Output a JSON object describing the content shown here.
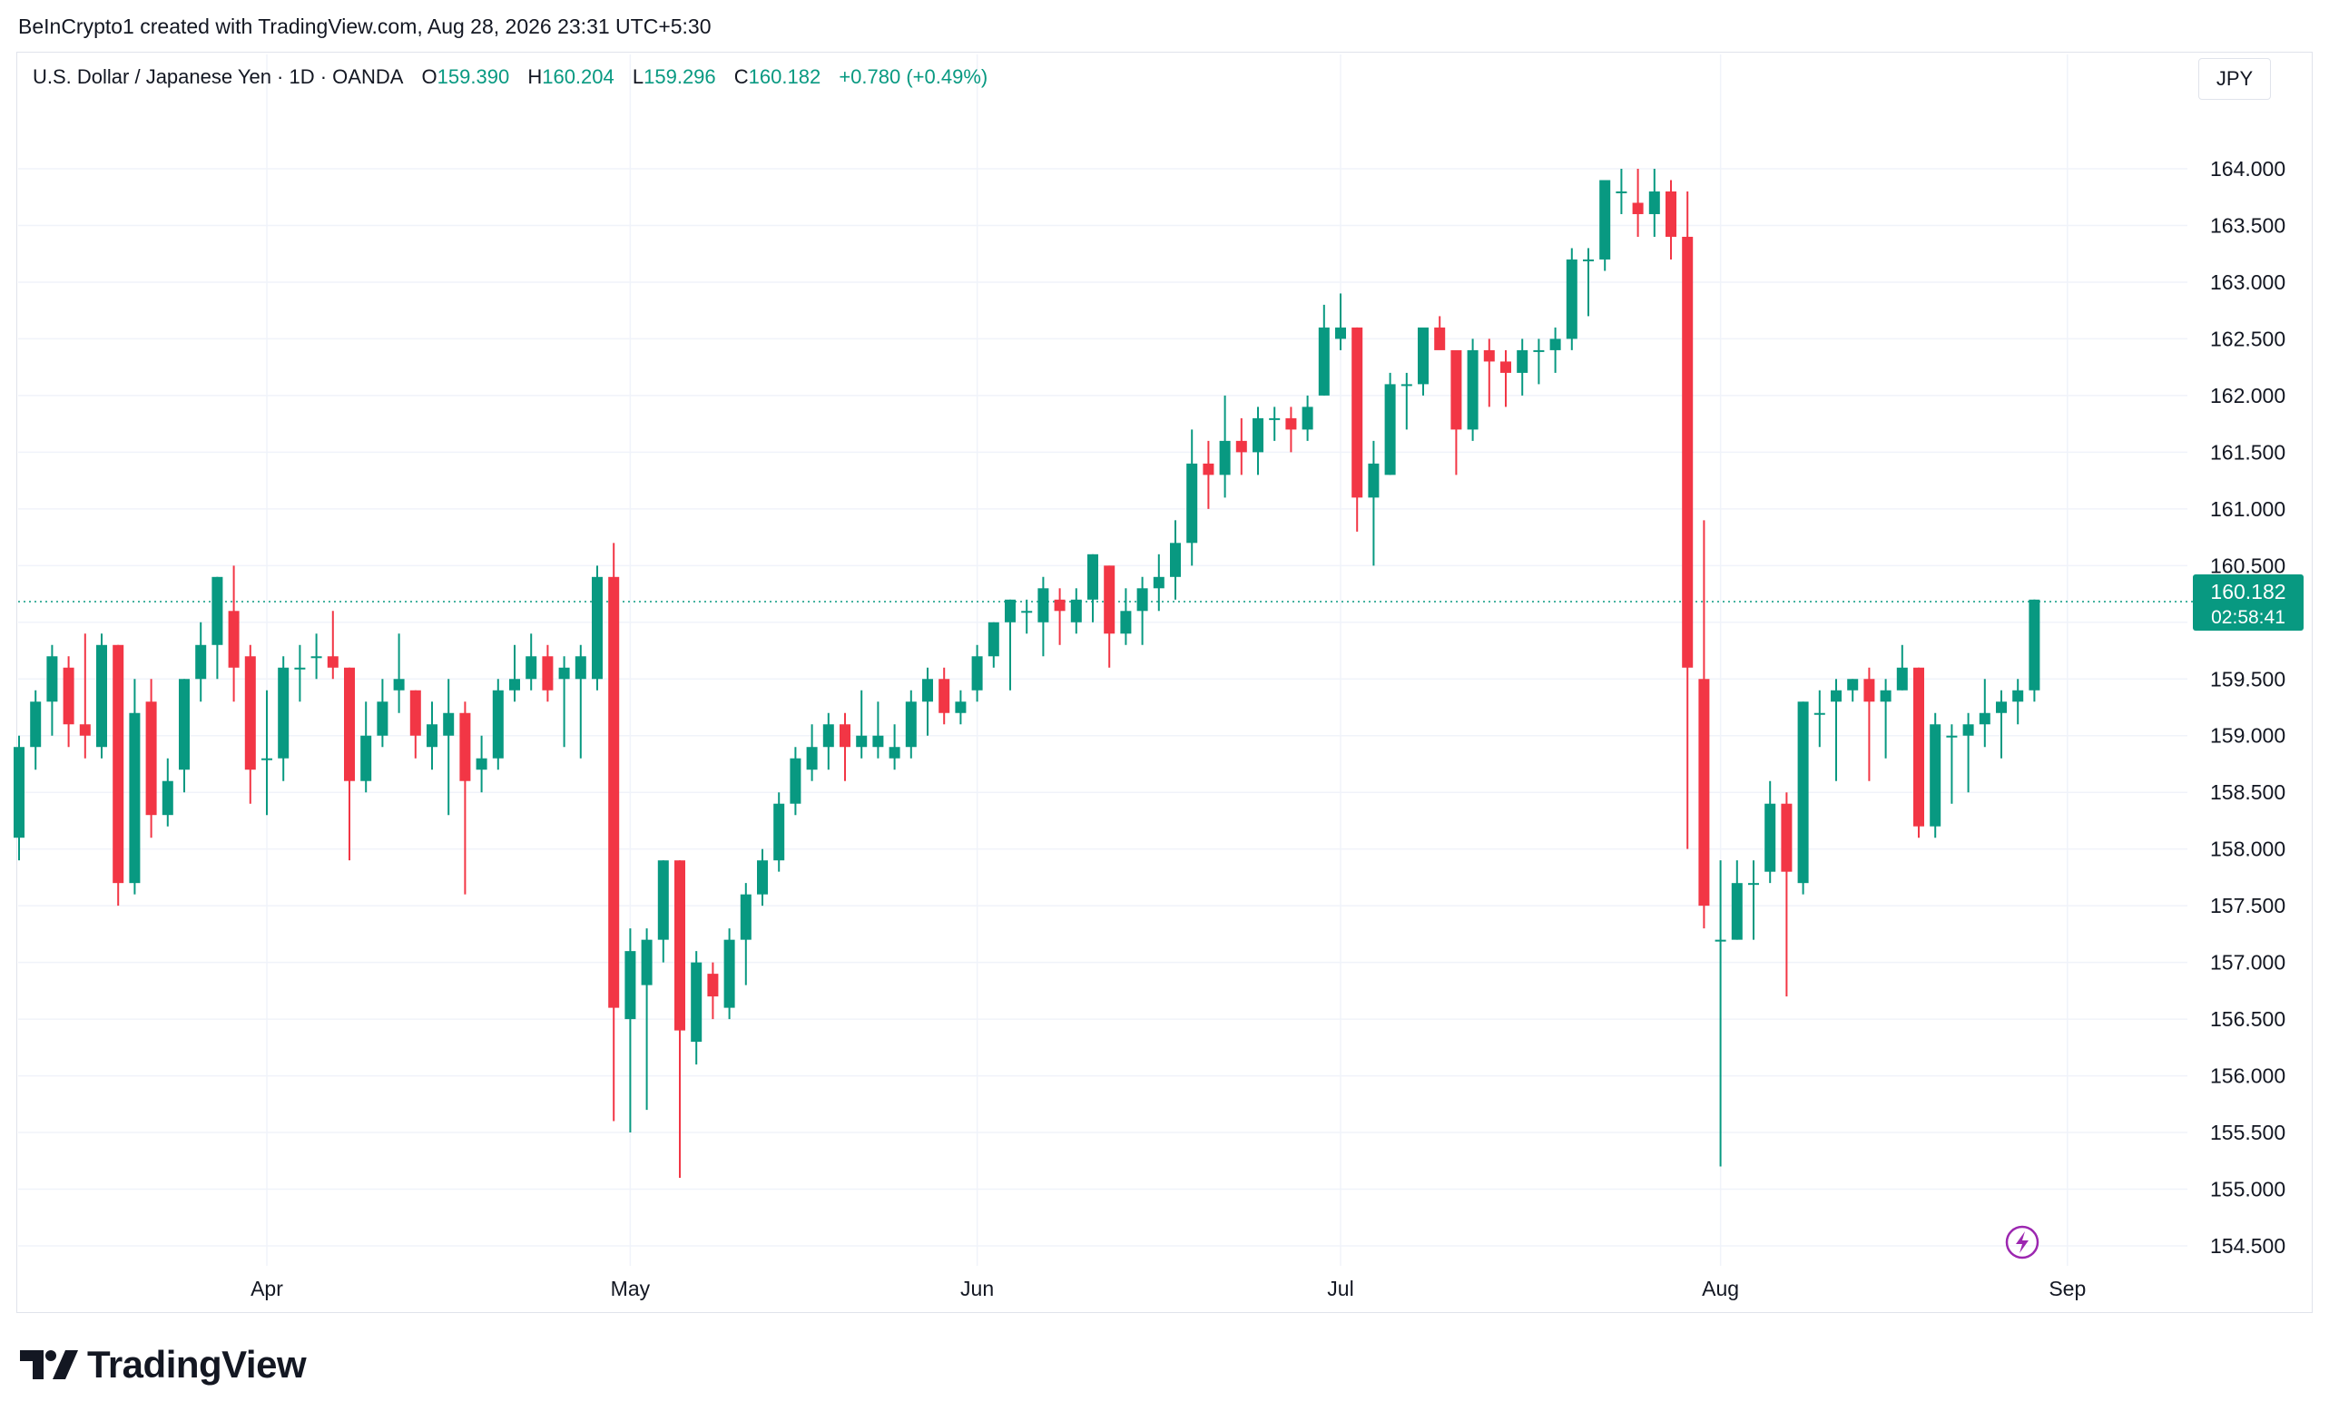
{
  "caption": "BeInCrypto1 created with TradingView.com, Aug 28, 2026 23:31 UTC+5:30",
  "legend": {
    "symbol": "U.S. Dollar / Japanese Yen · 1D · OANDA",
    "open_label": "O",
    "open": "159.390",
    "high_label": "H",
    "high": "160.204",
    "low_label": "L",
    "low": "159.296",
    "close_label": "C",
    "close": "160.182",
    "change": "+0.780 (+0.49%)"
  },
  "currency_button": "JPY",
  "brand": "TradingView",
  "colors": {
    "up": "#089981",
    "down": "#f23645",
    "grid": "#f0f3fa",
    "price_line": "#089981",
    "watermark": "#9c27b0"
  },
  "chart_data": {
    "type": "candlestick",
    "ylim": [
      154.3,
      164.8
    ],
    "y_ticks": [
      "164.000",
      "163.500",
      "163.000",
      "162.500",
      "162.000",
      "161.500",
      "161.000",
      "160.500",
      "160.000",
      "159.500",
      "159.000",
      "158.500",
      "158.000",
      "157.500",
      "157.000",
      "156.500",
      "156.000",
      "155.500",
      "155.000",
      "154.500"
    ],
    "x_ticks": [
      {
        "label": "Apr",
        "index": 15
      },
      {
        "label": "May",
        "index": 37
      },
      {
        "label": "Jun",
        "index": 58
      },
      {
        "label": "Jul",
        "index": 80
      },
      {
        "label": "Aug",
        "index": 103
      },
      {
        "label": "Sep",
        "index": 124
      }
    ],
    "last_price": "160.182",
    "countdown": "02:58:41",
    "candles": [
      [
        158.1,
        159.0,
        157.9,
        158.9
      ],
      [
        158.9,
        159.4,
        158.7,
        159.3
      ],
      [
        159.3,
        159.8,
        159.0,
        159.7
      ],
      [
        159.6,
        159.7,
        158.9,
        159.1
      ],
      [
        159.1,
        159.9,
        158.8,
        159.0
      ],
      [
        158.9,
        159.9,
        158.8,
        159.8
      ],
      [
        159.8,
        159.8,
        157.5,
        157.7
      ],
      [
        157.7,
        159.5,
        157.6,
        159.2
      ],
      [
        159.3,
        159.5,
        158.1,
        158.3
      ],
      [
        158.3,
        158.8,
        158.2,
        158.6
      ],
      [
        158.7,
        159.5,
        158.5,
        159.5
      ],
      [
        159.5,
        160.0,
        159.3,
        159.8
      ],
      [
        159.8,
        160.4,
        159.5,
        160.4
      ],
      [
        160.1,
        160.5,
        159.3,
        159.6
      ],
      [
        159.7,
        159.8,
        158.4,
        158.7
      ],
      [
        158.8,
        159.4,
        158.3,
        158.8
      ],
      [
        158.8,
        159.7,
        158.6,
        159.6
      ],
      [
        159.6,
        159.8,
        159.3,
        159.6
      ],
      [
        159.7,
        159.9,
        159.5,
        159.7
      ],
      [
        159.7,
        160.1,
        159.5,
        159.6
      ],
      [
        159.6,
        159.6,
        157.9,
        158.6
      ],
      [
        158.6,
        159.3,
        158.5,
        159.0
      ],
      [
        159.0,
        159.5,
        158.9,
        159.3
      ],
      [
        159.4,
        159.9,
        159.2,
        159.5
      ],
      [
        159.4,
        159.4,
        158.8,
        159.0
      ],
      [
        158.9,
        159.3,
        158.7,
        159.1
      ],
      [
        159.0,
        159.5,
        158.3,
        159.2
      ],
      [
        159.2,
        159.3,
        157.6,
        158.6
      ],
      [
        158.7,
        159.0,
        158.5,
        158.8
      ],
      [
        158.8,
        159.5,
        158.7,
        159.4
      ],
      [
        159.4,
        159.8,
        159.3,
        159.5
      ],
      [
        159.5,
        159.9,
        159.4,
        159.7
      ],
      [
        159.7,
        159.8,
        159.3,
        159.4
      ],
      [
        159.5,
        159.7,
        158.9,
        159.6
      ],
      [
        159.5,
        159.8,
        158.8,
        159.7
      ],
      [
        159.5,
        160.5,
        159.4,
        160.4
      ],
      [
        160.4,
        160.7,
        155.6,
        156.6
      ],
      [
        156.5,
        157.3,
        155.5,
        157.1
      ],
      [
        156.8,
        157.3,
        155.7,
        157.2
      ],
      [
        157.2,
        157.9,
        157.0,
        157.9
      ],
      [
        157.9,
        157.9,
        155.1,
        156.4
      ],
      [
        156.3,
        157.1,
        156.1,
        157.0
      ],
      [
        156.9,
        157.0,
        156.5,
        156.7
      ],
      [
        156.6,
        157.3,
        156.5,
        157.2
      ],
      [
        157.2,
        157.7,
        156.8,
        157.6
      ],
      [
        157.6,
        158.0,
        157.5,
        157.9
      ],
      [
        157.9,
        158.5,
        157.8,
        158.4
      ],
      [
        158.4,
        158.9,
        158.3,
        158.8
      ],
      [
        158.7,
        159.1,
        158.6,
        158.9
      ],
      [
        158.9,
        159.2,
        158.7,
        159.1
      ],
      [
        159.1,
        159.2,
        158.6,
        158.9
      ],
      [
        158.9,
        159.4,
        158.8,
        159.0
      ],
      [
        158.9,
        159.3,
        158.8,
        159.0
      ],
      [
        158.8,
        159.1,
        158.7,
        158.9
      ],
      [
        158.9,
        159.4,
        158.8,
        159.3
      ],
      [
        159.3,
        159.6,
        159.0,
        159.5
      ],
      [
        159.5,
        159.6,
        159.1,
        159.2
      ],
      [
        159.2,
        159.4,
        159.1,
        159.3
      ],
      [
        159.4,
        159.8,
        159.3,
        159.7
      ],
      [
        159.7,
        160.0,
        159.6,
        160.0
      ],
      [
        160.0,
        160.2,
        159.4,
        160.2
      ],
      [
        160.1,
        160.2,
        159.9,
        160.1
      ],
      [
        160.0,
        160.4,
        159.7,
        160.3
      ],
      [
        160.2,
        160.3,
        159.8,
        160.1
      ],
      [
        160.0,
        160.3,
        159.9,
        160.2
      ],
      [
        160.2,
        160.6,
        160.0,
        160.6
      ],
      [
        160.5,
        160.5,
        159.6,
        159.9
      ],
      [
        159.9,
        160.3,
        159.8,
        160.1
      ],
      [
        160.1,
        160.4,
        159.8,
        160.3
      ],
      [
        160.3,
        160.6,
        160.1,
        160.4
      ],
      [
        160.4,
        160.9,
        160.2,
        160.7
      ],
      [
        160.7,
        161.7,
        160.5,
        161.4
      ],
      [
        161.4,
        161.6,
        161.0,
        161.3
      ],
      [
        161.3,
        162.0,
        161.1,
        161.6
      ],
      [
        161.6,
        161.8,
        161.3,
        161.5
      ],
      [
        161.5,
        161.9,
        161.3,
        161.8
      ],
      [
        161.8,
        161.9,
        161.6,
        161.8
      ],
      [
        161.8,
        161.9,
        161.5,
        161.7
      ],
      [
        161.7,
        162.0,
        161.6,
        161.9
      ],
      [
        162.0,
        162.8,
        162.0,
        162.6
      ],
      [
        162.5,
        162.9,
        162.4,
        162.6
      ],
      [
        162.6,
        162.6,
        160.8,
        161.1
      ],
      [
        161.1,
        161.6,
        160.5,
        161.4
      ],
      [
        161.3,
        162.2,
        161.3,
        162.1
      ],
      [
        162.1,
        162.2,
        161.7,
        162.1
      ],
      [
        162.1,
        162.5,
        162.0,
        162.6
      ],
      [
        162.6,
        162.7,
        162.5,
        162.4
      ],
      [
        162.4,
        162.3,
        161.3,
        161.7
      ],
      [
        161.7,
        162.5,
        161.6,
        162.4
      ],
      [
        162.4,
        162.5,
        161.9,
        162.3
      ],
      [
        162.3,
        162.4,
        161.9,
        162.2
      ],
      [
        162.2,
        162.5,
        162.0,
        162.4
      ],
      [
        162.4,
        162.5,
        162.1,
        162.4
      ],
      [
        162.4,
        162.6,
        162.2,
        162.5
      ],
      [
        162.5,
        163.3,
        162.4,
        163.2
      ],
      [
        163.2,
        163.3,
        162.7,
        163.2
      ],
      [
        163.2,
        163.9,
        163.1,
        163.9
      ],
      [
        163.8,
        164.0,
        163.6,
        163.8
      ],
      [
        163.7,
        164.0,
        163.4,
        163.6
      ],
      [
        163.6,
        164.0,
        163.4,
        163.8
      ],
      [
        163.8,
        163.9,
        163.2,
        163.4
      ],
      [
        163.4,
        163.8,
        158.0,
        159.6
      ],
      [
        159.5,
        160.9,
        157.3,
        157.5
      ],
      [
        157.2,
        157.9,
        155.2,
        157.2
      ],
      [
        157.2,
        157.9,
        157.2,
        157.7
      ],
      [
        157.7,
        157.9,
        157.2,
        157.7
      ],
      [
        157.8,
        158.6,
        157.7,
        158.4
      ],
      [
        158.4,
        158.5,
        156.7,
        157.8
      ],
      [
        157.7,
        159.3,
        157.6,
        159.3
      ],
      [
        159.2,
        159.4,
        158.9,
        159.2
      ],
      [
        159.3,
        159.5,
        158.6,
        159.4
      ],
      [
        159.4,
        159.5,
        159.3,
        159.5
      ],
      [
        159.5,
        159.6,
        158.6,
        159.3
      ],
      [
        159.3,
        159.5,
        158.8,
        159.4
      ],
      [
        159.4,
        159.8,
        159.4,
        159.6
      ],
      [
        159.6,
        159.6,
        158.1,
        158.2
      ],
      [
        158.2,
        159.2,
        158.1,
        159.1
      ],
      [
        159.0,
        159.1,
        158.4,
        159.0
      ],
      [
        159.0,
        159.2,
        158.5,
        159.1
      ],
      [
        159.1,
        159.5,
        158.9,
        159.2
      ],
      [
        159.2,
        159.4,
        158.8,
        159.3
      ],
      [
        159.3,
        159.5,
        159.1,
        159.4
      ],
      [
        159.4,
        160.2,
        159.3,
        160.2
      ]
    ]
  }
}
